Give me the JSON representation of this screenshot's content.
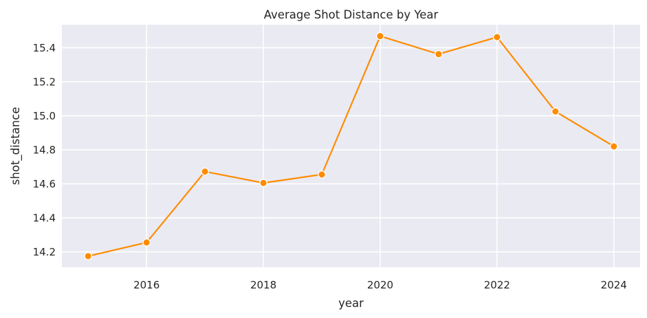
{
  "chart_data": {
    "type": "line",
    "title": "Average Shot Distance by Year",
    "xlabel": "year",
    "ylabel": "shot_distance",
    "x": [
      2015,
      2016,
      2017,
      2018,
      2019,
      2020,
      2021,
      2022,
      2023,
      2024
    ],
    "series": [
      {
        "values": [
          14.175,
          14.255,
          14.672,
          14.605,
          14.655,
          15.468,
          15.362,
          15.462,
          15.025,
          14.82
        ],
        "color": "#ff8c00"
      }
    ],
    "xlim": [
      2014.55,
      2024.45
    ],
    "ylim": [
      14.11,
      15.535
    ],
    "xticks": [
      2016,
      2018,
      2020,
      2022,
      2024
    ],
    "yticks": [
      14.2,
      14.4,
      14.6,
      14.8,
      15.0,
      15.2,
      15.4
    ],
    "ytick_labels": [
      "14.2",
      "14.4",
      "14.6",
      "14.8",
      "15.0",
      "15.2",
      "15.4"
    ],
    "grid": true,
    "markers": true,
    "background_color": "#eaeaf2",
    "grid_color": "#ffffff"
  }
}
